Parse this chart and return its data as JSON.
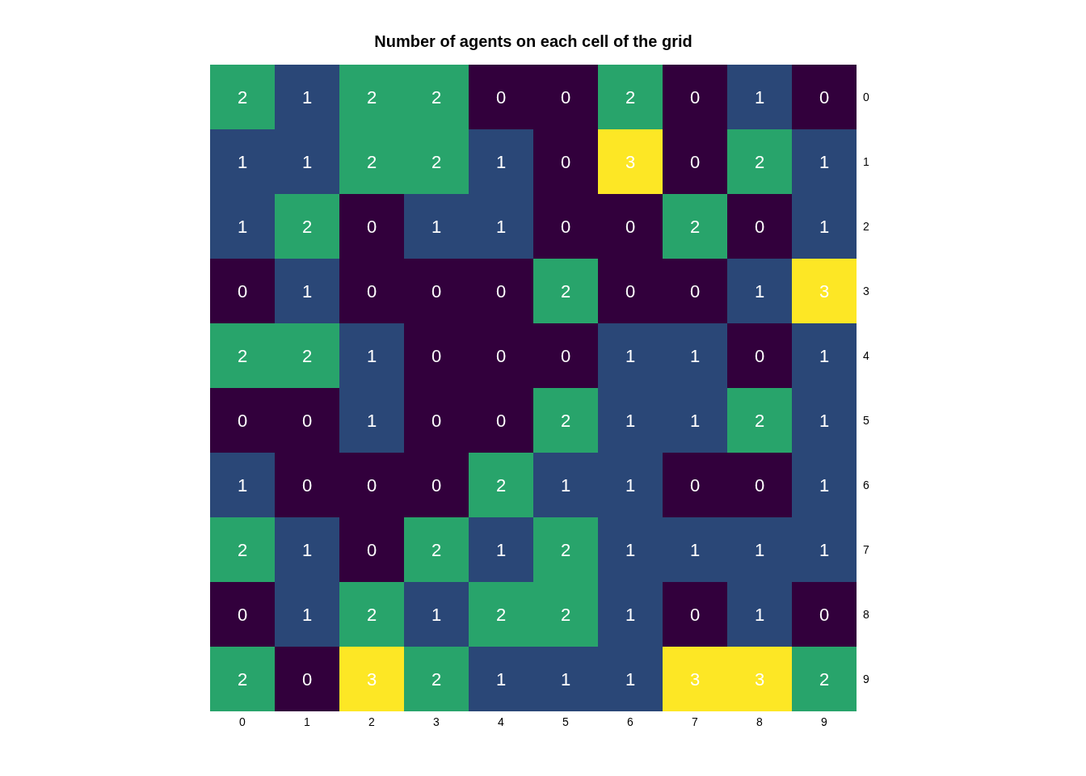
{
  "chart_data": {
    "type": "heatmap",
    "title": "Number of agents on each cell of the grid",
    "categories": [
      "0",
      "1",
      "2",
      "3",
      "4",
      "5",
      "6",
      "7",
      "8",
      "9"
    ],
    "y_categories": [
      "0",
      "1",
      "2",
      "3",
      "4",
      "5",
      "6",
      "7",
      "8",
      "9"
    ],
    "cells": [
      [
        2,
        1,
        2,
        2,
        0,
        0,
        2,
        0,
        1,
        0
      ],
      [
        1,
        1,
        2,
        2,
        1,
        0,
        3,
        0,
        2,
        1
      ],
      [
        1,
        2,
        0,
        1,
        1,
        0,
        0,
        2,
        0,
        1
      ],
      [
        0,
        1,
        0,
        0,
        0,
        2,
        0,
        0,
        1,
        3
      ],
      [
        2,
        2,
        1,
        0,
        0,
        0,
        1,
        1,
        0,
        1
      ],
      [
        0,
        0,
        1,
        0,
        0,
        2,
        1,
        1,
        2,
        1
      ],
      [
        1,
        0,
        0,
        0,
        2,
        1,
        1,
        0,
        0,
        1
      ],
      [
        2,
        1,
        0,
        2,
        1,
        2,
        1,
        1,
        1,
        1
      ],
      [
        0,
        1,
        2,
        1,
        2,
        2,
        1,
        0,
        1,
        0
      ],
      [
        2,
        0,
        3,
        2,
        1,
        1,
        1,
        3,
        3,
        2
      ]
    ],
    "data_labels": true
  }
}
